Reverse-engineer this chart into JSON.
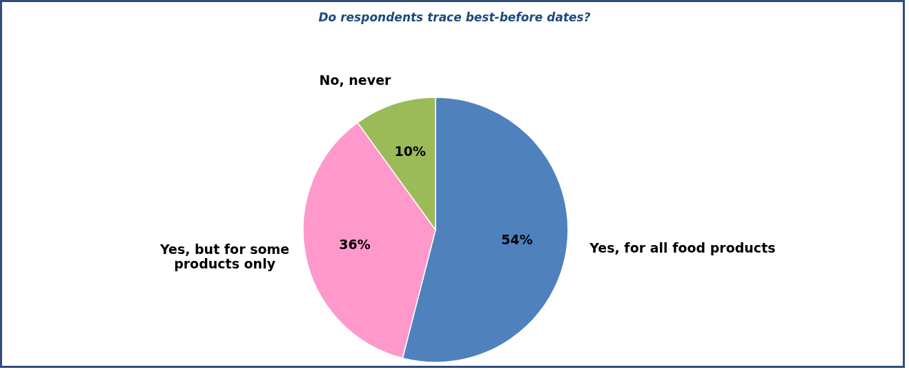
{
  "chart_data": {
    "type": "pie",
    "title": "Do respondents trace best-before dates?",
    "categories": [
      "Yes, for all food products",
      "Yes, but for some products only",
      "No, never"
    ],
    "values": [
      54,
      36,
      10
    ],
    "colors": [
      "#4f81bd",
      "#ff99cc",
      "#9bbb59"
    ],
    "value_labels": [
      "54%",
      "36%",
      "10%"
    ],
    "legend": false
  }
}
